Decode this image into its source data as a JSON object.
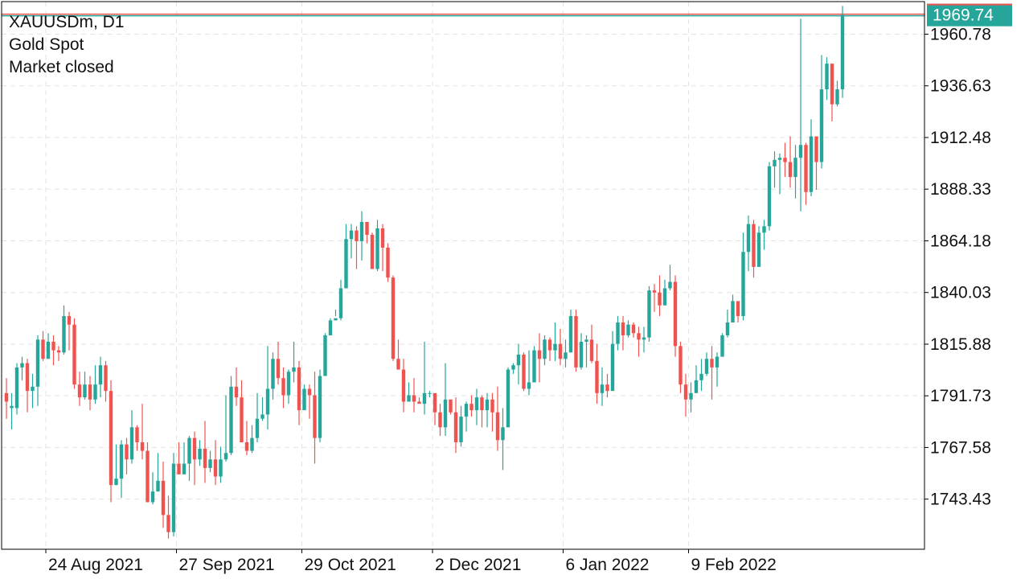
{
  "info": {
    "symbol_line": "XAUUSDm, D1",
    "name_line": "Gold Spot",
    "status_line": "Market closed"
  },
  "current_price": {
    "label": "1969.74",
    "value": 1969.74
  },
  "colors": {
    "up": "#26a69a",
    "down": "#ef5350",
    "grid": "#e3e3e3",
    "axis": "#000000",
    "price_line_red": "#ef5350",
    "price_line_green": "#26a69a"
  },
  "chart_data": {
    "type": "candlestick",
    "timeframe": "D1",
    "ylim": [
      1720,
      1976
    ],
    "yticks": [
      "1743.43",
      "1767.58",
      "1791.73",
      "1815.88",
      "1840.03",
      "1864.18",
      "1888.33",
      "1912.48",
      "1936.63",
      "1960.78"
    ],
    "xticks": [
      "24 Aug 2021",
      "27 Sep 2021",
      "29 Oct 2021",
      "2 Dec 2021",
      "6 Jan 2022",
      "9 Feb 2022"
    ],
    "grid": true,
    "candles": [
      [
        1793,
        1789,
        1800,
        1781
      ],
      [
        1786,
        1787,
        1793,
        1776
      ],
      [
        1786,
        1805,
        1807,
        1783
      ],
      [
        1805,
        1807,
        1810,
        1799
      ],
      [
        1807,
        1794,
        1809,
        1784
      ],
      [
        1794,
        1796,
        1802,
        1786
      ],
      [
        1796,
        1818,
        1820,
        1787
      ],
      [
        1818,
        1809,
        1822,
        1808
      ],
      [
        1809,
        1817,
        1821,
        1810
      ],
      [
        1817,
        1813,
        1820,
        1806
      ],
      [
        1813,
        1812,
        1815,
        1808
      ],
      [
        1812,
        1829,
        1834,
        1811
      ],
      [
        1829,
        1825,
        1831,
        1813
      ],
      [
        1825,
        1797,
        1828,
        1795
      ],
      [
        1797,
        1791,
        1803,
        1787
      ],
      [
        1791,
        1797,
        1803,
        1790
      ],
      [
        1797,
        1790,
        1801,
        1785
      ],
      [
        1790,
        1797,
        1806,
        1788
      ],
      [
        1797,
        1806,
        1810,
        1791
      ],
      [
        1806,
        1794,
        1808,
        1789
      ],
      [
        1794,
        1750,
        1799,
        1742
      ],
      [
        1750,
        1753,
        1769,
        1750
      ],
      [
        1753,
        1769,
        1771,
        1744
      ],
      [
        1769,
        1762,
        1772,
        1755
      ],
      [
        1762,
        1777,
        1785,
        1760
      ],
      [
        1777,
        1770,
        1778,
        1766
      ],
      [
        1770,
        1766,
        1788,
        1762
      ],
      [
        1766,
        1742,
        1770,
        1742
      ],
      [
        1742,
        1747,
        1756,
        1741
      ],
      [
        1747,
        1752,
        1765,
        1747
      ],
      [
        1752,
        1736,
        1761,
        1730
      ],
      [
        1736,
        1728,
        1745,
        1725
      ],
      [
        1728,
        1760,
        1765,
        1726
      ],
      [
        1760,
        1755,
        1770,
        1755
      ],
      [
        1755,
        1760,
        1770,
        1756
      ],
      [
        1760,
        1772,
        1773,
        1752
      ],
      [
        1772,
        1762,
        1775,
        1750
      ],
      [
        1762,
        1767,
        1771,
        1759
      ],
      [
        1767,
        1758,
        1780,
        1751
      ],
      [
        1758,
        1762,
        1766,
        1756
      ],
      [
        1762,
        1754,
        1771,
        1750
      ],
      [
        1754,
        1762,
        1768,
        1751
      ],
      [
        1762,
        1765,
        1792,
        1761
      ],
      [
        1765,
        1796,
        1801,
        1764
      ],
      [
        1796,
        1791,
        1805,
        1787
      ],
      [
        1791,
        1770,
        1799,
        1770
      ],
      [
        1770,
        1766,
        1780,
        1764
      ],
      [
        1766,
        1772,
        1778,
        1765
      ],
      [
        1772,
        1781,
        1793,
        1770
      ],
      [
        1781,
        1783,
        1791,
        1780
      ],
      [
        1783,
        1795,
        1815,
        1776
      ],
      [
        1795,
        1809,
        1812,
        1790
      ],
      [
        1809,
        1800,
        1817,
        1797
      ],
      [
        1800,
        1792,
        1805,
        1786
      ],
      [
        1792,
        1803,
        1804,
        1788
      ],
      [
        1803,
        1805,
        1817,
        1798
      ],
      [
        1805,
        1785,
        1808,
        1778
      ],
      [
        1785,
        1795,
        1797,
        1788
      ],
      [
        1795,
        1792,
        1797,
        1781
      ],
      [
        1792,
        1772,
        1803,
        1760
      ],
      [
        1772,
        1801,
        1804,
        1770
      ],
      [
        1801,
        1820,
        1821,
        1801
      ],
      [
        1820,
        1827,
        1828,
        1825
      ],
      [
        1827,
        1828,
        1832,
        1829
      ],
      [
        1828,
        1842,
        1846,
        1827
      ],
      [
        1842,
        1865,
        1872,
        1842
      ],
      [
        1865,
        1869,
        1872,
        1856
      ],
      [
        1869,
        1864,
        1871,
        1851
      ],
      [
        1864,
        1873,
        1878,
        1855
      ],
      [
        1873,
        1867,
        1873,
        1863
      ],
      [
        1867,
        1851,
        1868,
        1851
      ],
      [
        1851,
        1870,
        1874,
        1850
      ],
      [
        1870,
        1861,
        1872,
        1850
      ],
      [
        1861,
        1847,
        1863,
        1845
      ],
      [
        1847,
        1809,
        1848,
        1808
      ],
      [
        1809,
        1804,
        1818,
        1804
      ],
      [
        1804,
        1789,
        1809,
        1784
      ],
      [
        1789,
        1792,
        1798,
        1789
      ],
      [
        1792,
        1789,
        1800,
        1784
      ],
      [
        1789,
        1788,
        1791,
        1788
      ],
      [
        1788,
        1793,
        1817,
        1783
      ],
      [
        1793,
        1793,
        1794,
        1791
      ],
      [
        1793,
        1784,
        1792,
        1778
      ],
      [
        1784,
        1777,
        1788,
        1773
      ],
      [
        1777,
        1790,
        1807,
        1773
      ],
      [
        1790,
        1784,
        1788,
        1783
      ],
      [
        1784,
        1770,
        1791,
        1765
      ],
      [
        1770,
        1782,
        1787,
        1768
      ],
      [
        1782,
        1788,
        1789,
        1775
      ],
      [
        1788,
        1785,
        1792,
        1782
      ],
      [
        1785,
        1791,
        1795,
        1778
      ],
      [
        1791,
        1785,
        1792,
        1777
      ],
      [
        1785,
        1790,
        1793,
        1777
      ],
      [
        1790,
        1784,
        1793,
        1775
      ],
      [
        1784,
        1771,
        1796,
        1766
      ],
      [
        1771,
        1777,
        1786,
        1757
      ],
      [
        1777,
        1804,
        1805,
        1779
      ],
      [
        1804,
        1806,
        1807,
        1802
      ],
      [
        1806,
        1811,
        1816,
        1797
      ],
      [
        1811,
        1795,
        1812,
        1794
      ],
      [
        1795,
        1798,
        1813,
        1792
      ],
      [
        1798,
        1813,
        1815,
        1799
      ],
      [
        1813,
        1809,
        1821,
        1798
      ],
      [
        1809,
        1818,
        1820,
        1806
      ],
      [
        1818,
        1813,
        1819,
        1808
      ],
      [
        1813,
        1816,
        1826,
        1808
      ],
      [
        1816,
        1809,
        1823,
        1806
      ],
      [
        1809,
        1812,
        1818,
        1805
      ],
      [
        1812,
        1829,
        1832,
        1812
      ],
      [
        1829,
        1805,
        1832,
        1803
      ],
      [
        1805,
        1817,
        1821,
        1804
      ],
      [
        1817,
        1818,
        1820,
        1805
      ],
      [
        1818,
        1808,
        1825,
        1807
      ],
      [
        1808,
        1793,
        1816,
        1788
      ],
      [
        1793,
        1797,
        1805,
        1787
      ],
      [
        1797,
        1794,
        1802,
        1791
      ],
      [
        1794,
        1816,
        1822,
        1799
      ],
      [
        1816,
        1826,
        1829,
        1813
      ],
      [
        1826,
        1820,
        1829,
        1813
      ],
      [
        1820,
        1825,
        1827,
        1819
      ],
      [
        1825,
        1821,
        1826,
        1819
      ],
      [
        1821,
        1818,
        1824,
        1810
      ],
      [
        1818,
        1819,
        1824,
        1812
      ],
      [
        1819,
        1841,
        1843,
        1817
      ],
      [
        1841,
        1840,
        1844,
        1831
      ],
      [
        1840,
        1834,
        1848,
        1829
      ],
      [
        1834,
        1842,
        1846,
        1835
      ],
      [
        1842,
        1845,
        1853,
        1841
      ],
      [
        1845,
        1815,
        1848,
        1810
      ],
      [
        1815,
        1797,
        1817,
        1793
      ],
      [
        1797,
        1790,
        1802,
        1782
      ],
      [
        1790,
        1793,
        1798,
        1784
      ],
      [
        1793,
        1799,
        1806,
        1794
      ],
      [
        1799,
        1802,
        1809,
        1794
      ],
      [
        1802,
        1809,
        1812,
        1801
      ],
      [
        1809,
        1805,
        1815,
        1790
      ],
      [
        1805,
        1810,
        1812,
        1796
      ],
      [
        1810,
        1820,
        1821,
        1810
      ],
      [
        1820,
        1826,
        1832,
        1819
      ],
      [
        1826,
        1836,
        1839,
        1826
      ],
      [
        1836,
        1829,
        1835,
        1826
      ],
      [
        1829,
        1859,
        1868,
        1827
      ],
      [
        1859,
        1872,
        1876,
        1850
      ],
      [
        1872,
        1852,
        1874,
        1847
      ],
      [
        1852,
        1868,
        1871,
        1852
      ],
      [
        1868,
        1871,
        1874,
        1860
      ],
      [
        1871,
        1899,
        1901,
        1869
      ],
      [
        1899,
        1902,
        1906,
        1889
      ],
      [
        1902,
        1903,
        1905,
        1886
      ],
      [
        1903,
        1901,
        1910,
        1894
      ],
      [
        1901,
        1894,
        1913,
        1889
      ],
      [
        1894,
        1903,
        1909,
        1884
      ],
      [
        1903,
        1909,
        1968,
        1878
      ],
      [
        1909,
        1887,
        1910,
        1881
      ],
      [
        1887,
        1913,
        1921,
        1885
      ],
      [
        1913,
        1901,
        1906,
        1888
      ],
      [
        1901,
        1935,
        1951,
        1898
      ],
      [
        1935,
        1947,
        1950,
        1930
      ],
      [
        1947,
        1928,
        1939,
        1920
      ],
      [
        1928,
        1935,
        1939,
        1927
      ],
      [
        1935,
        1969.74,
        1974,
        1931
      ]
    ]
  }
}
